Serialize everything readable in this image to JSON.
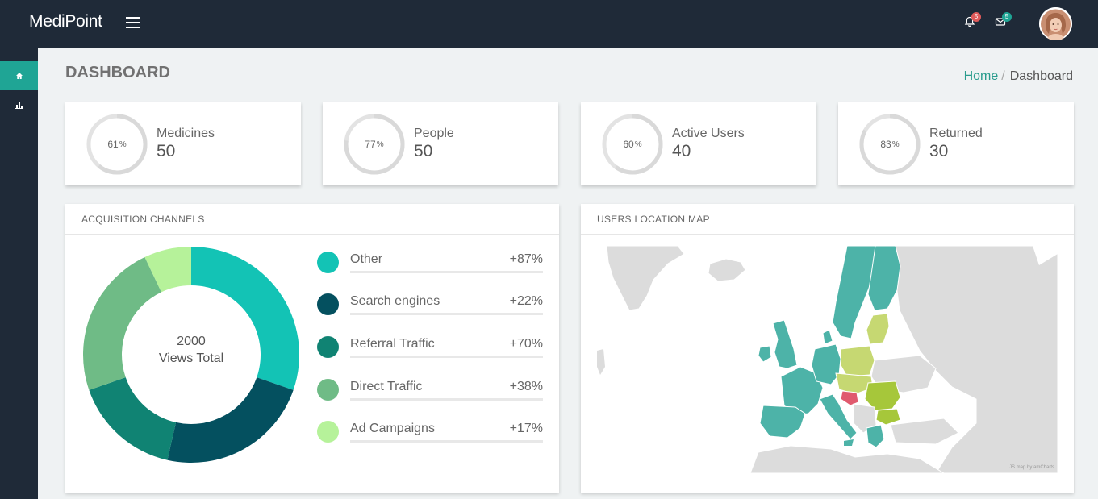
{
  "app": {
    "brand": "MediPoint"
  },
  "header": {
    "notifications": {
      "icon": "bell-icon",
      "count": "5",
      "color": "#e05a5a"
    },
    "messages": {
      "icon": "envelope-icon",
      "count": "5",
      "color": "#1fa595"
    }
  },
  "sidebar": {
    "items": [
      {
        "icon": "home-icon",
        "active": true
      },
      {
        "icon": "bar-chart-icon",
        "active": false
      }
    ]
  },
  "page": {
    "title": "DASHBOARD",
    "breadcrumb": {
      "home": "Home",
      "separator": "/",
      "current": "Dashboard"
    }
  },
  "stats": [
    {
      "percent_text": "61",
      "percent_sign": "%",
      "percent": 61,
      "label": "Medicines",
      "value": "50"
    },
    {
      "percent_text": "77",
      "percent_sign": "%",
      "percent": 77,
      "label": "People",
      "value": "50"
    },
    {
      "percent_text": "60",
      "percent_sign": "%",
      "percent": 60,
      "label": "Active Users",
      "value": "40"
    },
    {
      "percent_text": "83",
      "percent_sign": "%",
      "percent": 83,
      "label": "Returned",
      "value": "30"
    }
  ],
  "acquisition": {
    "title": "ACQUISITION CHANNELS",
    "center_value": "2000",
    "center_label": "Views Total",
    "channels": [
      {
        "name": "Other",
        "change": "+87%",
        "color": "#13c3b5"
      },
      {
        "name": "Search engines",
        "change": "+22%",
        "color": "#04505f"
      },
      {
        "name": "Referral Traffic",
        "change": "+70%",
        "color": "#108373"
      },
      {
        "name": "Direct Traffic",
        "change": "+38%",
        "color": "#6fbb86"
      },
      {
        "name": "Ad Campaigns",
        "change": "+17%",
        "color": "#b6f29a"
      }
    ]
  },
  "chart_data": {
    "type": "pie",
    "categories": [
      "Other",
      "Search engines",
      "Referral Traffic",
      "Direct Traffic",
      "Ad Campaigns"
    ],
    "values": [
      30,
      23,
      16,
      23,
      7
    ],
    "center_text": "2000 Views Total"
  },
  "location_map": {
    "title": "USERS LOCATION MAP",
    "credit": "JS map by amCharts",
    "colors": {
      "land": "#dcdcdc",
      "teal": "#4db3a8",
      "light_green": "#c6d872",
      "green": "#a6c73a",
      "red": "#e05a6e"
    }
  }
}
